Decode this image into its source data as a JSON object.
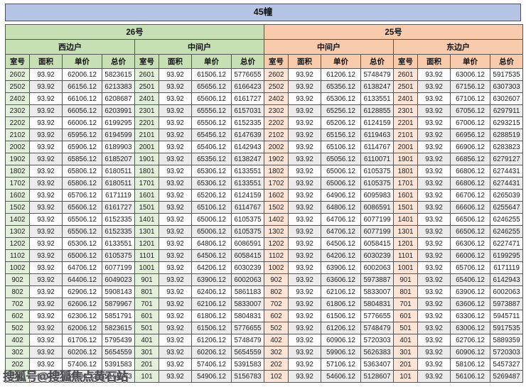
{
  "page": {
    "title": "45幢"
  },
  "table": {
    "groups": [
      {
        "label": "26号",
        "subgroups": [
          "西边户",
          "中间户"
        ]
      },
      {
        "label": "25号",
        "subgroups": [
          "中间户",
          "东边户"
        ]
      }
    ],
    "column_headers": [
      "室号",
      "面积",
      "单价",
      "总价"
    ],
    "sections": [
      {
        "group": "26号",
        "unit_type": "西边户",
        "rows": [
          [
            "2602",
            "93.92",
            "62006.12",
            "5823615"
          ],
          [
            "2502",
            "93.92",
            "66156.12",
            "6213383"
          ],
          [
            "2402",
            "93.92",
            "66106.12",
            "6208687"
          ],
          [
            "2302",
            "93.92",
            "66056.12",
            "6203991"
          ],
          [
            "2202",
            "93.92",
            "66006.12",
            "6199295"
          ],
          [
            "2102",
            "93.92",
            "65956.12",
            "6194599"
          ],
          [
            "2002",
            "93.92",
            "65906.12",
            "6189903"
          ],
          [
            "1902",
            "93.92",
            "65856.12",
            "6185207"
          ],
          [
            "1802",
            "93.92",
            "65806.12",
            "6180511"
          ],
          [
            "1702",
            "93.92",
            "65806.12",
            "6180511"
          ],
          [
            "1602",
            "93.92",
            "65706.12",
            "6171119"
          ],
          [
            "1502",
            "93.92",
            "65606.12",
            "6161727"
          ],
          [
            "1402",
            "93.92",
            "65506.12",
            "6152335"
          ],
          [
            "1302",
            "93.92",
            "65506.12",
            "6152335"
          ],
          [
            "1202",
            "93.92",
            "65306.12",
            "6133551"
          ],
          [
            "1102",
            "93.92",
            "65006.12",
            "6105375"
          ],
          [
            "1002",
            "93.92",
            "64706.12",
            "6077199"
          ],
          [
            "902",
            "93.92",
            "64406.12",
            "6049023"
          ],
          [
            "802",
            "93.92",
            "62906.12",
            "5908143"
          ],
          [
            "702",
            "93.92",
            "62606.12",
            "5879967"
          ],
          [
            "602",
            "93.92",
            "62306.12",
            "5851791"
          ],
          [
            "502",
            "93.92",
            "62006.12",
            "5823615"
          ],
          [
            "402",
            "93.92",
            "61706.12",
            "5795439"
          ],
          [
            "302",
            "93.92",
            "60206.12",
            "5654559"
          ],
          [
            "202",
            "93.92",
            "57406.12",
            "5391583"
          ],
          [
            "102",
            "93.92",
            "54906.12",
            "5156743"
          ]
        ]
      },
      {
        "group": "26号",
        "unit_type": "中间户",
        "rows": [
          [
            "2601",
            "93.92",
            "61506.12",
            "5776655"
          ],
          [
            "2501",
            "93.92",
            "65656.12",
            "6166423"
          ],
          [
            "2401",
            "93.92",
            "65606.12",
            "6161727"
          ],
          [
            "2301",
            "93.92",
            "65556.12",
            "6157031"
          ],
          [
            "2201",
            "93.92",
            "65506.12",
            "6152335"
          ],
          [
            "2101",
            "93.92",
            "65456.12",
            "6147639"
          ],
          [
            "2001",
            "93.92",
            "65406.12",
            "6142943"
          ],
          [
            "1901",
            "93.92",
            "65356.12",
            "6138247"
          ],
          [
            "1801",
            "93.92",
            "65306.12",
            "6133551"
          ],
          [
            "1701",
            "93.92",
            "65306.12",
            "6133551"
          ],
          [
            "1601",
            "93.92",
            "65206.12",
            "6124159"
          ],
          [
            "1501",
            "93.92",
            "65106.12",
            "6114767"
          ],
          [
            "1401",
            "93.92",
            "65006.12",
            "6105375"
          ],
          [
            "1301",
            "93.92",
            "65006.12",
            "6105375"
          ],
          [
            "1201",
            "93.92",
            "64806.12",
            "6086591"
          ],
          [
            "1101",
            "93.92",
            "64506.12",
            "6058415"
          ],
          [
            "1001",
            "93.92",
            "64206.12",
            "6030239"
          ],
          [
            "901",
            "93.92",
            "63906.12",
            "6002063"
          ],
          [
            "801",
            "93.92",
            "62406.12",
            "5861183"
          ],
          [
            "701",
            "93.92",
            "62106.12",
            "5833007"
          ],
          [
            "601",
            "93.92",
            "61806.12",
            "5804831"
          ],
          [
            "501",
            "93.92",
            "61506.12",
            "5776655"
          ],
          [
            "401",
            "93.92",
            "61206.12",
            "5748479"
          ],
          [
            "301",
            "93.92",
            "60206.12",
            "5654559"
          ],
          [
            "201",
            "93.92",
            "57406.12",
            "5391583"
          ],
          [
            "101",
            "93.92",
            "54906.12",
            "5156783"
          ]
        ]
      },
      {
        "group": "25号",
        "unit_type": "中间户",
        "rows": [
          [
            "2602",
            "93.92",
            "61206.12",
            "5748479"
          ],
          [
            "2502",
            "93.92",
            "65356.12",
            "6138247"
          ],
          [
            "2402",
            "93.92",
            "65306.12",
            "6133551"
          ],
          [
            "2302",
            "93.92",
            "65256.12",
            "6128855"
          ],
          [
            "2202",
            "93.92",
            "65206.12",
            "6124159"
          ],
          [
            "2102",
            "93.92",
            "65156.12",
            "6119463"
          ],
          [
            "2002",
            "93.92",
            "65106.12",
            "6114767"
          ],
          [
            "1902",
            "93.92",
            "65056.12",
            "6110071"
          ],
          [
            "1802",
            "93.92",
            "65006.12",
            "6105375"
          ],
          [
            "1702",
            "93.92",
            "65006.12",
            "6105375"
          ],
          [
            "1602",
            "93.92",
            "64906.12",
            "6095983"
          ],
          [
            "1502",
            "93.92",
            "64806.12",
            "6086591"
          ],
          [
            "1402",
            "93.92",
            "64706.12",
            "6077199"
          ],
          [
            "1302",
            "93.92",
            "64706.12",
            "6077199"
          ],
          [
            "1202",
            "93.92",
            "64506.12",
            "6058415"
          ],
          [
            "1102",
            "93.92",
            "64206.12",
            "6030239"
          ],
          [
            "1002",
            "93.92",
            "63906.12",
            "6002063"
          ],
          [
            "902",
            "93.92",
            "63606.12",
            "5973887"
          ],
          [
            "802",
            "93.92",
            "62106.12",
            "5833007"
          ],
          [
            "702",
            "93.92",
            "61806.12",
            "5804831"
          ],
          [
            "602",
            "93.92",
            "61506.12",
            "5776655"
          ],
          [
            "502",
            "93.92",
            "61206.12",
            "5748479"
          ],
          [
            "402",
            "93.92",
            "60906.12",
            "5720303"
          ],
          [
            "302",
            "93.92",
            "59906.12",
            "5626383"
          ],
          [
            "202",
            "93.92",
            "57106.12",
            "5363407"
          ],
          [
            "102",
            "93.92",
            "54606.12",
            "5128607"
          ]
        ]
      },
      {
        "group": "25号",
        "unit_type": "东边户",
        "rows": [
          [
            "2601",
            "93.92",
            "63006.12",
            "5917535"
          ],
          [
            "2501",
            "93.92",
            "67156.12",
            "6307303"
          ],
          [
            "2401",
            "93.92",
            "67106.12",
            "6302607"
          ],
          [
            "2301",
            "93.92",
            "67056.12",
            "6297911"
          ],
          [
            "2201",
            "93.92",
            "67006.12",
            "6293215"
          ],
          [
            "2101",
            "93.92",
            "66956.12",
            "6288519"
          ],
          [
            "2001",
            "93.92",
            "66906.12",
            "6283823"
          ],
          [
            "1901",
            "93.92",
            "66856.12",
            "6279127"
          ],
          [
            "1801",
            "93.92",
            "66806.12",
            "6274431"
          ],
          [
            "1701",
            "93.92",
            "66806.12",
            "6274431"
          ],
          [
            "1601",
            "93.92",
            "66706.12",
            "6265039"
          ],
          [
            "1501",
            "93.92",
            "66606.12",
            "6255647"
          ],
          [
            "1401",
            "93.92",
            "66506.12",
            "6246255"
          ],
          [
            "1301",
            "93.92",
            "66506.12",
            "6246255"
          ],
          [
            "1201",
            "93.92",
            "66306.12",
            "6227471"
          ],
          [
            "1101",
            "93.92",
            "66006.12",
            "6199295"
          ],
          [
            "1001",
            "93.92",
            "65706.12",
            "6171119"
          ],
          [
            "901",
            "93.92",
            "65406.12",
            "6142943"
          ],
          [
            "801",
            "93.92",
            "63906.12",
            "6002063"
          ],
          [
            "701",
            "93.92",
            "63606.12",
            "5973887"
          ],
          [
            "601",
            "93.92",
            "63306.12",
            "5945711"
          ],
          [
            "501",
            "93.92",
            "63006.12",
            "5917535"
          ],
          [
            "401",
            "93.92",
            "62706.12",
            "5889359"
          ],
          [
            "301",
            "93.92",
            "60906.12",
            "5720303"
          ],
          [
            "201",
            "93.92",
            "58106.12",
            "5457327"
          ],
          [
            "101",
            "93.92",
            "56106.12",
            "5269487"
          ]
        ]
      }
    ]
  },
  "watermark": {
    "text": "搜狐号@搜狐焦点黄石站"
  },
  "colors": {
    "title_bar": "#b6c5e6",
    "group_26_green": "#c6e0b4",
    "group_25_peach": "#f8cbad",
    "room_col_green": "#e2efda",
    "room_col_peach": "#fce4d6",
    "row_stripe": "#ececec",
    "border": "#565656"
  }
}
